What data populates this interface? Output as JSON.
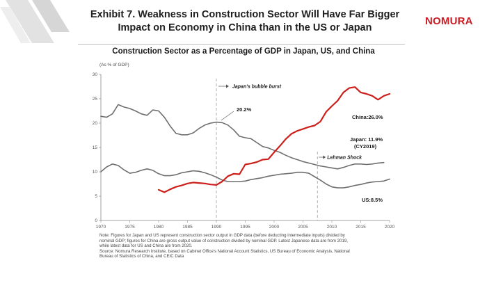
{
  "header": {
    "title_line1": "Exhibit 7. Weakness in Construction Sector Will Have Far Bigger",
    "title_line2": "Impact on Economy in China than in the US or Japan",
    "brand": "NOMURA"
  },
  "chart_data": {
    "type": "line",
    "title": "Construction Sector as a Percentage of GDP in Japan, US, and China",
    "ylabel": "(As % of GDP)",
    "xlabel": "",
    "xlim": [
      1970,
      2020
    ],
    "ylim": [
      0,
      30
    ],
    "xticks": [
      1970,
      1975,
      1980,
      1985,
      1990,
      1995,
      2000,
      2005,
      2010,
      2015,
      2020
    ],
    "yticks": [
      0,
      5,
      10,
      15,
      20,
      25,
      30
    ],
    "grid": false,
    "series": [
      {
        "name": "Japan",
        "color": "#6e6e6e",
        "x": [
          1970,
          1971,
          1972,
          1973,
          1974,
          1975,
          1976,
          1977,
          1978,
          1979,
          1980,
          1981,
          1982,
          1983,
          1984,
          1985,
          1986,
          1987,
          1988,
          1989,
          1990,
          1991,
          1992,
          1993,
          1994,
          1995,
          1996,
          1997,
          1998,
          1999,
          2000,
          2001,
          2002,
          2003,
          2004,
          2005,
          2006,
          2007,
          2008,
          2009,
          2010,
          2011,
          2012,
          2013,
          2014,
          2015,
          2016,
          2017,
          2018,
          2019
        ],
        "values": [
          21.4,
          21.2,
          21.9,
          23.8,
          23.3,
          23.0,
          22.5,
          21.9,
          21.6,
          22.7,
          22.5,
          21.2,
          19.4,
          17.9,
          17.6,
          17.6,
          18.0,
          18.9,
          19.6,
          20.0,
          20.2,
          20.1,
          19.6,
          18.6,
          17.3,
          17.0,
          16.8,
          16.0,
          15.2,
          14.9,
          14.4,
          14.0,
          13.4,
          12.9,
          12.5,
          12.1,
          11.8,
          11.5,
          11.2,
          11.0,
          10.8,
          10.6,
          10.9,
          11.3,
          11.6,
          11.6,
          11.5,
          11.6,
          11.8,
          11.9
        ]
      },
      {
        "name": "US",
        "color": "#6e6e6e",
        "x": [
          1970,
          1971,
          1972,
          1973,
          1974,
          1975,
          1976,
          1977,
          1978,
          1979,
          1980,
          1981,
          1982,
          1983,
          1984,
          1985,
          1986,
          1987,
          1988,
          1989,
          1990,
          1991,
          1992,
          1993,
          1994,
          1995,
          1996,
          1997,
          1998,
          1999,
          2000,
          2001,
          2002,
          2003,
          2004,
          2005,
          2006,
          2007,
          2008,
          2009,
          2010,
          2011,
          2012,
          2013,
          2014,
          2015,
          2016,
          2017,
          2018,
          2019,
          2020
        ],
        "values": [
          10.0,
          11.0,
          11.6,
          11.3,
          10.4,
          9.7,
          9.9,
          10.3,
          10.6,
          10.3,
          9.6,
          9.2,
          9.2,
          9.4,
          9.8,
          10.0,
          10.2,
          10.1,
          9.8,
          9.4,
          8.9,
          8.3,
          8.0,
          8.0,
          8.0,
          8.1,
          8.4,
          8.6,
          8.8,
          9.1,
          9.3,
          9.5,
          9.6,
          9.7,
          9.9,
          9.9,
          9.7,
          9.0,
          8.3,
          7.5,
          6.9,
          6.7,
          6.7,
          6.9,
          7.2,
          7.4,
          7.7,
          7.9,
          8.0,
          8.1,
          8.5
        ]
      },
      {
        "name": "China",
        "color": "#cc1f1a",
        "x": [
          1980,
          1981,
          1982,
          1983,
          1984,
          1985,
          1986,
          1987,
          1988,
          1989,
          1990,
          1991,
          1992,
          1993,
          1994,
          1995,
          1996,
          1997,
          1998,
          1999,
          2000,
          2001,
          2002,
          2003,
          2004,
          2005,
          2006,
          2007,
          2008,
          2009,
          2010,
          2011,
          2012,
          2013,
          2014,
          2015,
          2016,
          2017,
          2018,
          2019,
          2020
        ],
        "values": [
          6.3,
          5.8,
          6.4,
          6.9,
          7.2,
          7.6,
          7.8,
          7.7,
          7.6,
          7.4,
          7.3,
          8.0,
          9.1,
          9.6,
          9.5,
          11.5,
          11.7,
          12.0,
          12.5,
          12.6,
          14.0,
          15.3,
          16.7,
          17.8,
          18.4,
          18.8,
          19.2,
          19.5,
          20.3,
          22.3,
          23.5,
          24.6,
          26.3,
          27.2,
          27.4,
          26.3,
          26.0,
          25.6,
          24.8,
          25.6,
          26.0
        ]
      }
    ],
    "annotations": {
      "bubble_label": "Japan's bubble burst",
      "bubble_year": 1990,
      "japan_peak_label": "20.2%",
      "lehman_label": "Lehman Shock",
      "lehman_year": 2007.5,
      "china_label": "China:26.0%",
      "japan_end_label_1": "Japan: 11.9%",
      "japan_end_label_2": "(CY2019)",
      "us_label": "US:8.5%"
    }
  },
  "notes": {
    "line1": "Note: Figures for Japan and US represent construction sector output in GDP data (before deducting intermediate inputs) divided by",
    "line2": "nominal GDP; figures for China are gross output value of construction divided by nominal GDP. Latest Japanese data are from 2019,",
    "line3": "while latest data for US and China are from 2020.",
    "line4": "Source: Nomura Research Institute, based on Cabinet Office's National Account Statistics, US Bureau of Economic Analysis, National",
    "line5": "Bureau of Statistics of China, and CEIC Data"
  }
}
